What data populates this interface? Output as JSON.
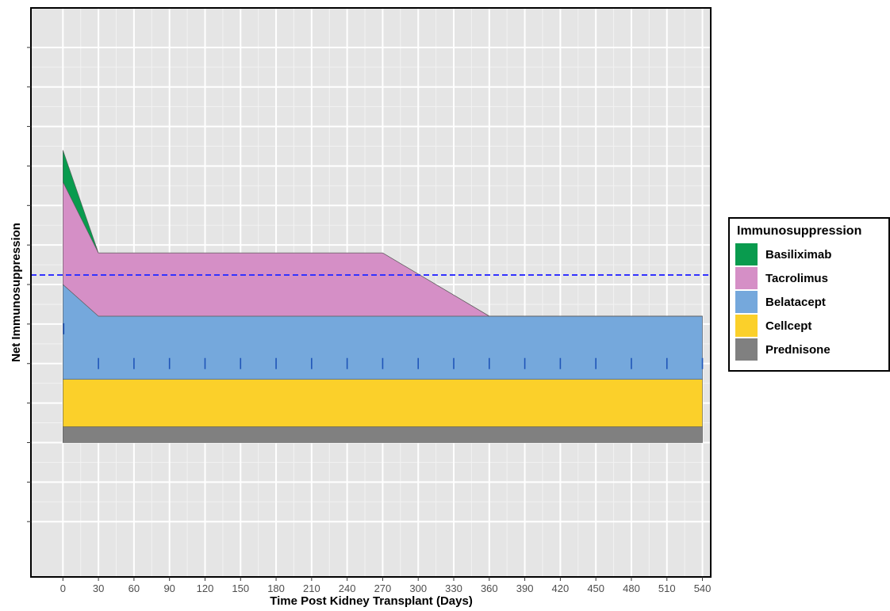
{
  "chart_data": {
    "type": "area",
    "stacked": true,
    "xlabel": "Time Post Kidney Transplant (Days)",
    "ylabel": "Net Immunosuppression",
    "x_ticks": [
      0,
      30,
      60,
      90,
      120,
      150,
      180,
      210,
      240,
      270,
      300,
      330,
      360,
      390,
      420,
      450,
      480,
      510,
      540
    ],
    "xlim": [
      -27,
      547
    ],
    "ylim": [
      -0.85,
      2.75
    ],
    "y_ticks": [
      -0.5,
      -0.25,
      0,
      0.25,
      0.5,
      0.75,
      1,
      1.25,
      1.5,
      1.75,
      2,
      2.25,
      2.5
    ],
    "y_tick_labels_shown": false,
    "grid": true,
    "legend": {
      "title": "Immunosuppression",
      "position": "right"
    },
    "series": [
      {
        "name": "Prednisone",
        "color": "#808080",
        "x": [
          0,
          540
        ],
        "values": [
          0.1,
          0.1
        ]
      },
      {
        "name": "Cellcept",
        "color": "#FBD02A",
        "x": [
          0,
          540
        ],
        "values": [
          0.3,
          0.3
        ]
      },
      {
        "name": "Belatacept",
        "color": "#75A8DC",
        "x": [
          0,
          30,
          540
        ],
        "values": [
          0.6,
          0.4,
          0.4
        ]
      },
      {
        "name": "Tacrolimus",
        "color": "#D58FC6",
        "x": [
          0,
          30,
          270,
          360,
          540
        ],
        "values": [
          0.65,
          0.4,
          0.4,
          0,
          0
        ]
      },
      {
        "name": "Basiliximab",
        "color": "#099B4E",
        "x": [
          0,
          30
        ],
        "values": [
          0.2,
          0
        ]
      }
    ],
    "reference_line": {
      "orientation": "horizontal",
      "y": 1.06,
      "color": "#3333FF",
      "style": "dashed"
    },
    "dose_markers": {
      "color": "#1F55B8",
      "x": [
        0,
        30,
        60,
        90,
        120,
        150,
        180,
        210,
        240,
        270,
        300,
        330,
        360,
        390,
        420,
        450,
        480,
        510,
        540
      ],
      "y_first": 0.72,
      "y_rest": 0.5
    }
  }
}
